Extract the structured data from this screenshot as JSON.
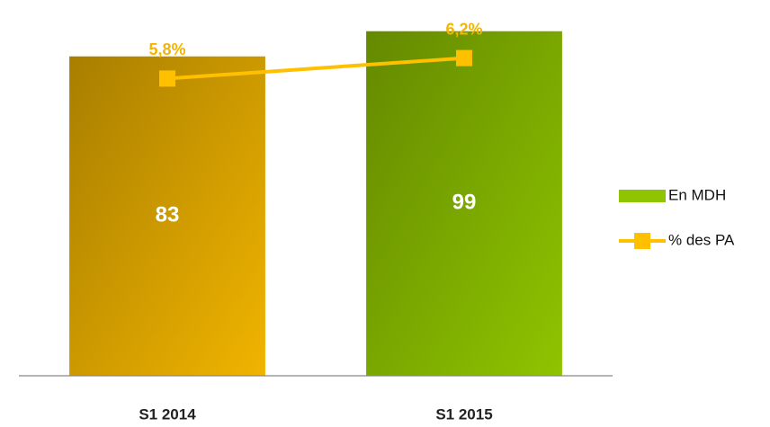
{
  "chart_data": {
    "type": "bar-line",
    "categories": [
      "S1 2014",
      "S1 2015"
    ],
    "series": [
      {
        "name": "En MDH",
        "type": "bar",
        "color": "#8fc400",
        "colors": [
          "#f0b400",
          "#8fc400"
        ],
        "values": [
          83,
          99
        ]
      },
      {
        "name": "% des PA",
        "type": "line",
        "axis": "y2",
        "color": "#ffc000",
        "values": [
          5.8,
          6.2
        ],
        "value_labels": [
          "5,8%",
          "6,2%"
        ]
      }
    ],
    "ylim": [
      -120,
      108
    ],
    "y2lim": [
      0,
      7
    ],
    "legend": "right"
  }
}
